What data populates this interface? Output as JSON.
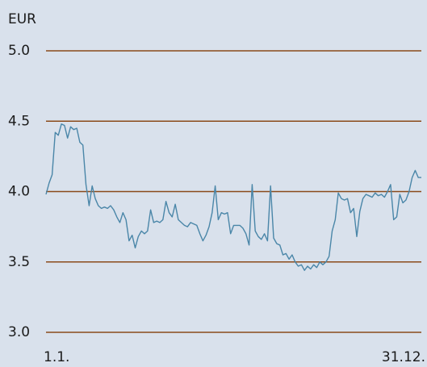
{
  "chart_data": {
    "type": "line",
    "y_label": "EUR",
    "categories": [
      "1.1.",
      null,
      null,
      null,
      null,
      null,
      null,
      null,
      null,
      null,
      null,
      null,
      null,
      null,
      null,
      null,
      null,
      null,
      null,
      null,
      null,
      null,
      null,
      null,
      null,
      null,
      null,
      null,
      null,
      null,
      null,
      null,
      null,
      null,
      null,
      null,
      null,
      null,
      null,
      null,
      null,
      null,
      null,
      null,
      null,
      null,
      null,
      null,
      null,
      null,
      null,
      null,
      null,
      null,
      null,
      null,
      null,
      null,
      null,
      null,
      null,
      null,
      null,
      null,
      null,
      null,
      null,
      null,
      null,
      null,
      null,
      null,
      null,
      null,
      null,
      null,
      null,
      null,
      null,
      null,
      null,
      null,
      null,
      null,
      null,
      null,
      null,
      null,
      null,
      null,
      null,
      null,
      null,
      null,
      null,
      null,
      null,
      null,
      null,
      null,
      null,
      null,
      null,
      null,
      null,
      null,
      null,
      null,
      null,
      null,
      null,
      null,
      null,
      null,
      null,
      null,
      null,
      null,
      null,
      null,
      null,
      null,
      "31.12."
    ],
    "series": [
      {
        "name": "EUR",
        "color": "#4a86a8",
        "values": [
          3.98,
          4.06,
          4.12,
          4.42,
          4.4,
          4.48,
          4.47,
          4.38,
          4.46,
          4.44,
          4.45,
          4.35,
          4.33,
          4.05,
          3.9,
          4.04,
          3.95,
          3.9,
          3.88,
          3.89,
          3.88,
          3.9,
          3.87,
          3.82,
          3.78,
          3.85,
          3.8,
          3.65,
          3.69,
          3.6,
          3.68,
          3.72,
          3.7,
          3.72,
          3.87,
          3.78,
          3.79,
          3.78,
          3.8,
          3.93,
          3.85,
          3.82,
          3.91,
          3.8,
          3.78,
          3.76,
          3.75,
          3.78,
          3.77,
          3.76,
          3.7,
          3.65,
          3.69,
          3.75,
          3.85,
          4.04,
          3.8,
          3.85,
          3.84,
          3.85,
          3.7,
          3.76,
          3.76,
          3.76,
          3.74,
          3.7,
          3.62,
          4.05,
          3.72,
          3.68,
          3.66,
          3.7,
          3.65,
          4.04,
          3.67,
          3.63,
          3.62,
          3.55,
          3.56,
          3.52,
          3.55,
          3.5,
          3.47,
          3.48,
          3.44,
          3.47,
          3.45,
          3.48,
          3.46,
          3.5,
          3.48,
          3.5,
          3.54,
          3.72,
          3.8,
          3.99,
          3.95,
          3.94,
          3.95,
          3.85,
          3.88,
          3.68,
          3.86,
          3.95,
          3.98,
          3.97,
          3.96,
          3.99,
          3.97,
          3.98,
          3.96,
          4.0,
          4.05,
          3.8,
          3.82,
          3.98,
          3.92,
          3.94,
          4.0,
          4.1,
          4.15,
          4.1,
          4.1
        ]
      }
    ],
    "ylim": [
      3.0,
      5.0
    ],
    "yticks": [
      {
        "value": 3.0,
        "label": "3.0"
      },
      {
        "value": 3.5,
        "label": "3.5"
      },
      {
        "value": 4.0,
        "label": "4.0"
      },
      {
        "value": 4.5,
        "label": "4.5"
      },
      {
        "value": 5.0,
        "label": "5.0"
      }
    ],
    "grid": true,
    "grid_color": "#8a4a1a"
  }
}
